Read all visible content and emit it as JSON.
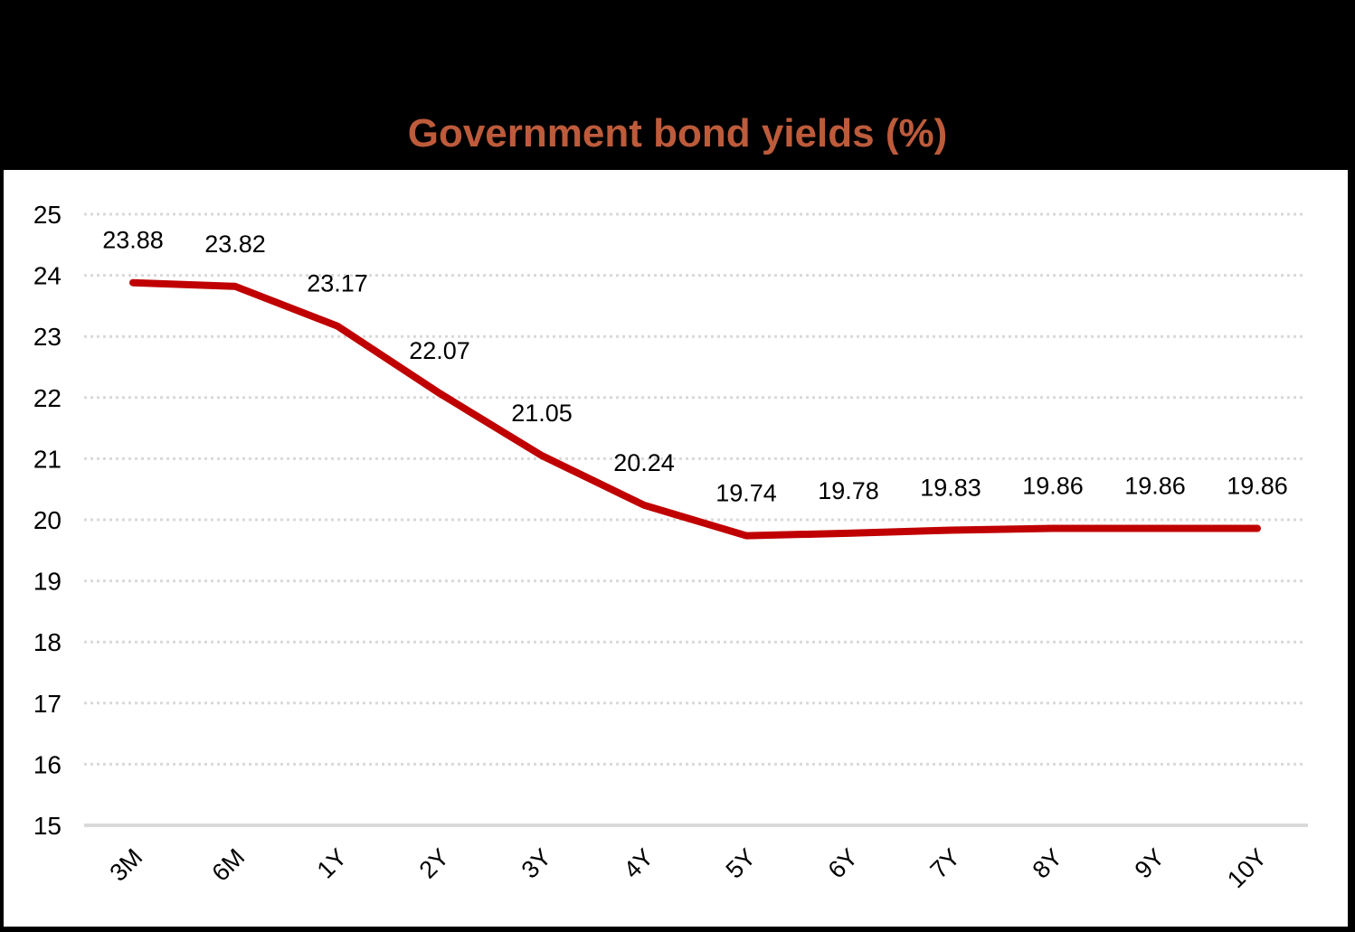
{
  "page": {
    "background_color": "#000000",
    "plot_background_color": "#FFFFFF"
  },
  "chart_data": {
    "type": "line",
    "title": "Government bond yields (%)",
    "categories": [
      "3M",
      "6M",
      "1Y",
      "2Y",
      "3Y",
      "4Y",
      "5Y",
      "6Y",
      "7Y",
      "8Y",
      "9Y",
      "10Y"
    ],
    "series": [
      {
        "name": "Government bond yields",
        "values": [
          23.88,
          23.82,
          23.17,
          22.07,
          21.05,
          20.24,
          19.74,
          19.78,
          19.83,
          19.86,
          19.86,
          19.86
        ]
      }
    ],
    "data_labels": [
      "23.88",
      "23.82",
      "23.17",
      "22.07",
      "21.05",
      "20.24",
      "19.74",
      "19.78",
      "19.83",
      "19.86",
      "19.86",
      "19.86"
    ],
    "xlabel": "",
    "ylabel": "",
    "ylim": [
      15,
      25
    ],
    "y_tick_step": 1,
    "y_tick_labels": [
      "25",
      "24",
      "23",
      "22",
      "21",
      "20",
      "19",
      "18",
      "17",
      "16",
      "15"
    ],
    "grid": "horizontal-dotted",
    "legend_position": "none",
    "colors": {
      "line": "#C00000",
      "title": "#BD5B3B",
      "gridline": "#D9D9D9",
      "axis_line": "#D9D9D9",
      "label_text": "#000000"
    }
  }
}
